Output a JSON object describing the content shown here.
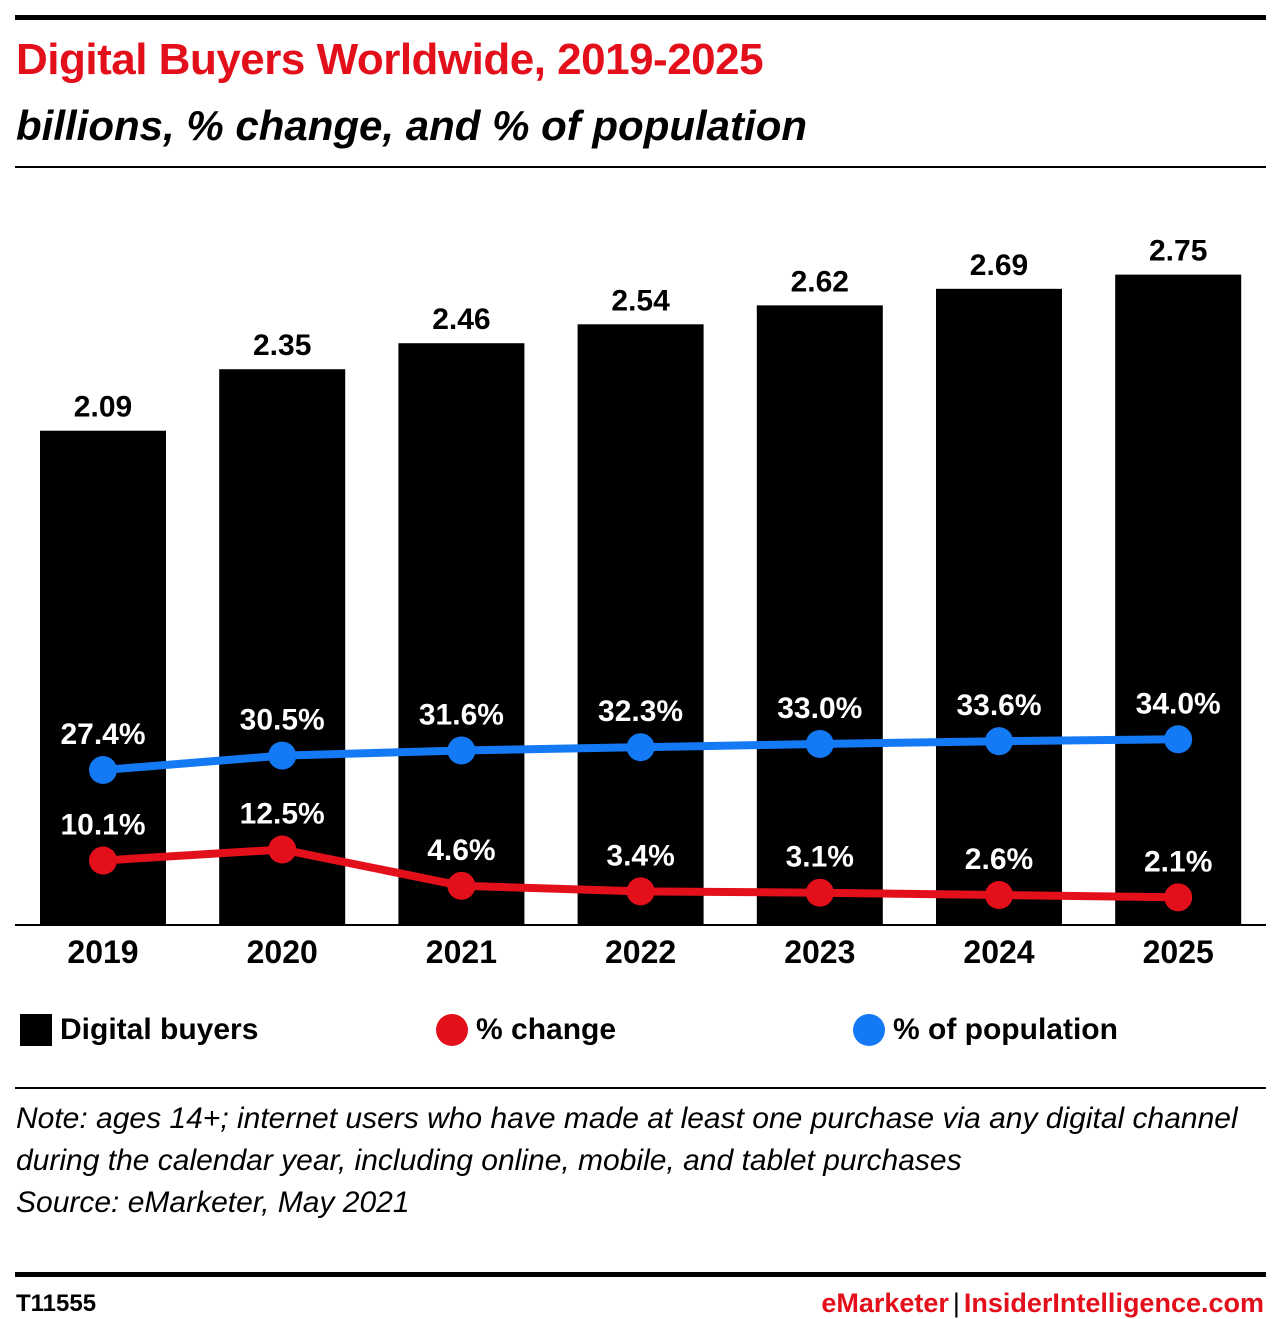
{
  "header": {
    "title": "Digital Buyers Worldwide, 2019-2025",
    "subtitle": "billions, % change, and % of population"
  },
  "colors": {
    "title": "#e3101c",
    "bars": "#000000",
    "change_line": "#e3101c",
    "population_line": "#1479f5"
  },
  "chart_data": {
    "type": "bar",
    "categories": [
      "2019",
      "2020",
      "2021",
      "2022",
      "2023",
      "2024",
      "2025"
    ],
    "series": [
      {
        "name": "Digital buyers",
        "type": "bar",
        "values": [
          2.09,
          2.35,
          2.46,
          2.54,
          2.62,
          2.69,
          2.75
        ],
        "labels": [
          "2.09",
          "2.35",
          "2.46",
          "2.54",
          "2.62",
          "2.69",
          "2.75"
        ]
      },
      {
        "name": "% change",
        "type": "line",
        "values": [
          10.1,
          12.5,
          4.6,
          3.4,
          3.1,
          2.6,
          2.1
        ],
        "labels": [
          "10.1%",
          "12.5%",
          "4.6%",
          "3.4%",
          "3.1%",
          "2.6%",
          "2.1%"
        ]
      },
      {
        "name": "% of population",
        "type": "line",
        "values": [
          27.4,
          30.5,
          31.6,
          32.3,
          33.0,
          33.6,
          34.0
        ],
        "labels": [
          "27.4%",
          "30.5%",
          "31.6%",
          "32.3%",
          "33.0%",
          "33.6%",
          "34.0%"
        ]
      }
    ],
    "legend_position": "bottom",
    "grid": false
  },
  "legend": {
    "bars_label": "Digital buyers",
    "change_label": "% change",
    "population_label": "% of population"
  },
  "note": {
    "text": "Note: ages 14+; internet users who have made at least one purchase via any digital channel during the calendar year, including online, mobile, and tablet purchases",
    "source": "Source: eMarketer, May 2021"
  },
  "footer": {
    "chart_id": "T11555",
    "brand_primary": "eMarketer",
    "separator": "|",
    "brand_secondary": "InsiderIntelligence.com"
  }
}
